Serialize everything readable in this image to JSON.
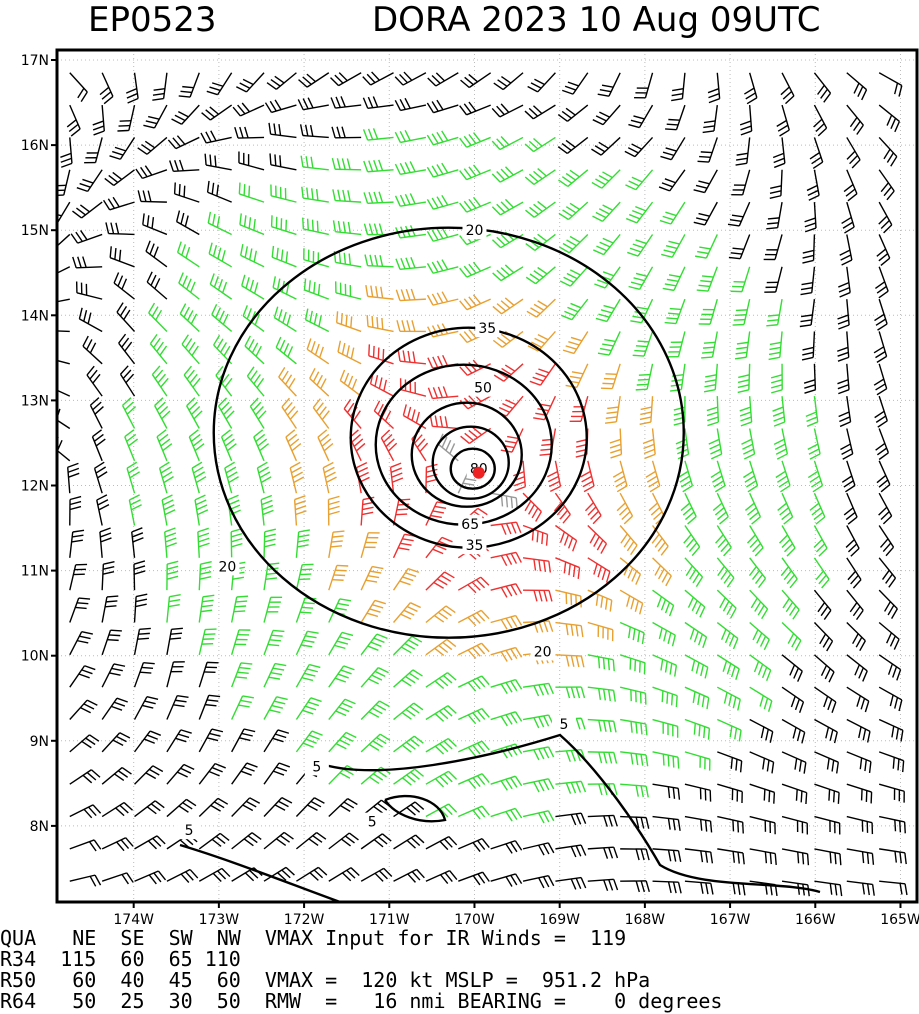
{
  "header": {
    "storm_id": "EP0523",
    "storm_title": "DORA 2023 10 Aug 09UTC"
  },
  "chart_data": {
    "type": "wind_field",
    "x_ticks": [
      {
        "lon": -174,
        "label": "174W"
      },
      {
        "lon": -173,
        "label": "173W"
      },
      {
        "lon": -172,
        "label": "172W"
      },
      {
        "lon": -171,
        "label": "171W"
      },
      {
        "lon": -170,
        "label": "170W"
      },
      {
        "lon": -169,
        "label": "169W"
      },
      {
        "lon": -168,
        "label": "168W"
      },
      {
        "lon": -167,
        "label": "167W"
      },
      {
        "lon": -166,
        "label": "166W"
      },
      {
        "lon": -165,
        "label": "165W"
      }
    ],
    "y_ticks": [
      {
        "lat": 8,
        "label": "8N"
      },
      {
        "lat": 9,
        "label": "9N"
      },
      {
        "lat": 10,
        "label": "10N"
      },
      {
        "lat": 11,
        "label": "11N"
      },
      {
        "lat": 12,
        "label": "12N"
      },
      {
        "lat": 13,
        "label": "13N"
      },
      {
        "lat": 14,
        "label": "14N"
      },
      {
        "lat": 15,
        "label": "15N"
      },
      {
        "lat": 16,
        "label": "16N"
      },
      {
        "lat": 17,
        "label": "17N"
      }
    ],
    "xlim": [
      -174.9,
      -164.9
    ],
    "ylim": [
      7.3,
      17.0
    ],
    "grid": true,
    "center": {
      "lon": -169.95,
      "lat": 12.15
    },
    "vmax_kt": 120,
    "contour_levels": [
      5,
      20,
      35,
      50,
      65,
      80
    ],
    "contour_labels": [
      {
        "text": "20",
        "lon": -170.0,
        "lat": 15.0
      },
      {
        "text": "35",
        "lon": -169.85,
        "lat": 13.85
      },
      {
        "text": "50",
        "lon": -169.9,
        "lat": 13.15
      },
      {
        "text": "80",
        "lon": -169.95,
        "lat": 12.2
      },
      {
        "text": "65",
        "lon": -170.05,
        "lat": 11.55
      },
      {
        "text": "35",
        "lon": -170.0,
        "lat": 11.3
      },
      {
        "text": "20",
        "lon": -172.9,
        "lat": 11.05
      },
      {
        "text": "20",
        "lon": -169.2,
        "lat": 10.05
      },
      {
        "text": "5",
        "lon": -168.95,
        "lat": 9.2
      },
      {
        "text": "5",
        "lon": -171.85,
        "lat": 8.7
      },
      {
        "text": "5",
        "lon": -171.2,
        "lat": 8.05
      },
      {
        "text": "5",
        "lon": -173.35,
        "lat": 7.95
      }
    ],
    "colors": {
      "black": "#000000",
      "green": "#33dd33",
      "orange": "#e8a030",
      "red": "#ee3030",
      "gray": "#999999",
      "center_dot": "#ee2222"
    }
  },
  "table": {
    "lines": [
      "QUA   NE  SE  SW  NW  VMAX Input for IR Winds =  119",
      "R34  115  60  65 110",
      "R50   60  40  45  60  VMAX =  120 kt MSLP =  951.2 hPa",
      "R64   50  25  30  50  RMW  =   16 nmi BEARING =    0 degrees"
    ]
  }
}
